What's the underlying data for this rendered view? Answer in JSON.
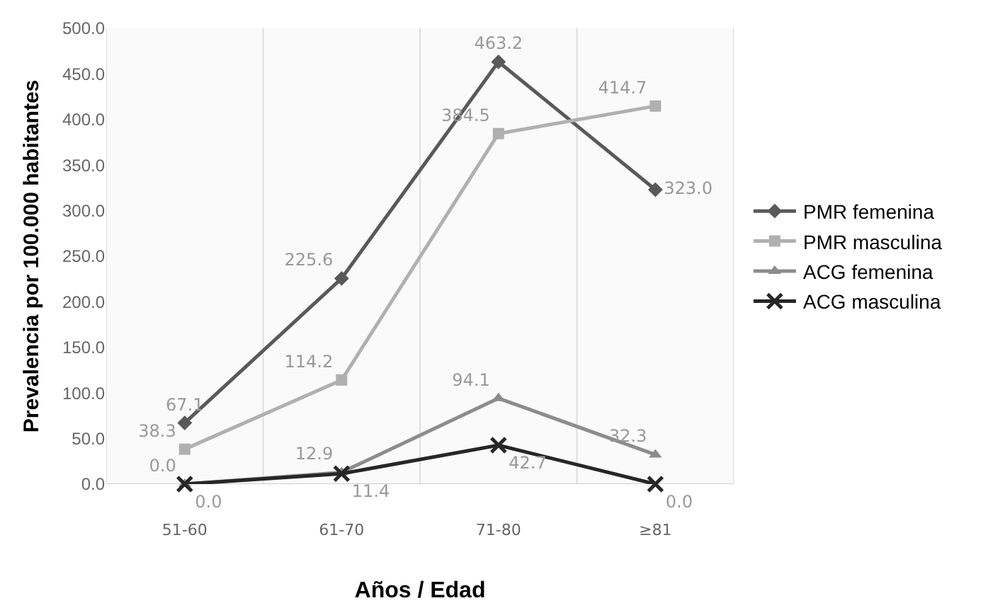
{
  "chart_data": {
    "type": "line",
    "xlabel": "Años / Edad",
    "ylabel": "Prevalencia por 100.000 habitantes",
    "categories": [
      "51-60",
      "61-70",
      "71-80",
      "≥81"
    ],
    "series": [
      {
        "name": "PMR femenina",
        "color": "#595959",
        "marker": "diamond",
        "values": [
          67.1,
          225.6,
          463.2,
          323.0
        ],
        "value_labels": [
          "67.1",
          "225.6",
          "463.2",
          "323.0"
        ]
      },
      {
        "name": "PMR masculina",
        "color": "#b0b0b0",
        "marker": "square",
        "values": [
          38.3,
          114.2,
          384.5,
          414.7
        ],
        "value_labels": [
          "38.3",
          "114.2",
          "384.5",
          "414.7"
        ]
      },
      {
        "name": "ACG femenina",
        "color": "#8c8c8c",
        "marker": "triangle",
        "values": [
          0.0,
          12.9,
          94.1,
          32.3
        ],
        "value_labels": [
          "0.0",
          "12.9",
          "94.1",
          "32.3"
        ]
      },
      {
        "name": "ACG masculina",
        "color": "#262626",
        "marker": "cross",
        "values": [
          0.0,
          11.4,
          42.7,
          0.0
        ],
        "value_labels": [
          "0.0",
          "11.4",
          "42.7",
          "0.0"
        ]
      }
    ],
    "ylim": [
      0,
      500
    ],
    "yticks": [
      {
        "value": 0,
        "label": "0.0"
      },
      {
        "value": 50,
        "label": "50.0"
      },
      {
        "value": 100,
        "label": "100.0"
      },
      {
        "value": 150,
        "label": "150.0"
      },
      {
        "value": 200,
        "label": "200.0"
      },
      {
        "value": 250,
        "label": "250.0"
      },
      {
        "value": 300,
        "label": "300.0"
      },
      {
        "value": 350,
        "label": "350.0"
      },
      {
        "value": 400,
        "label": "400.0"
      },
      {
        "value": 450,
        "label": "450.0"
      },
      {
        "value": 500,
        "label": "500.0"
      }
    ],
    "grid": "x",
    "legend": "right",
    "line_style": "solid"
  }
}
